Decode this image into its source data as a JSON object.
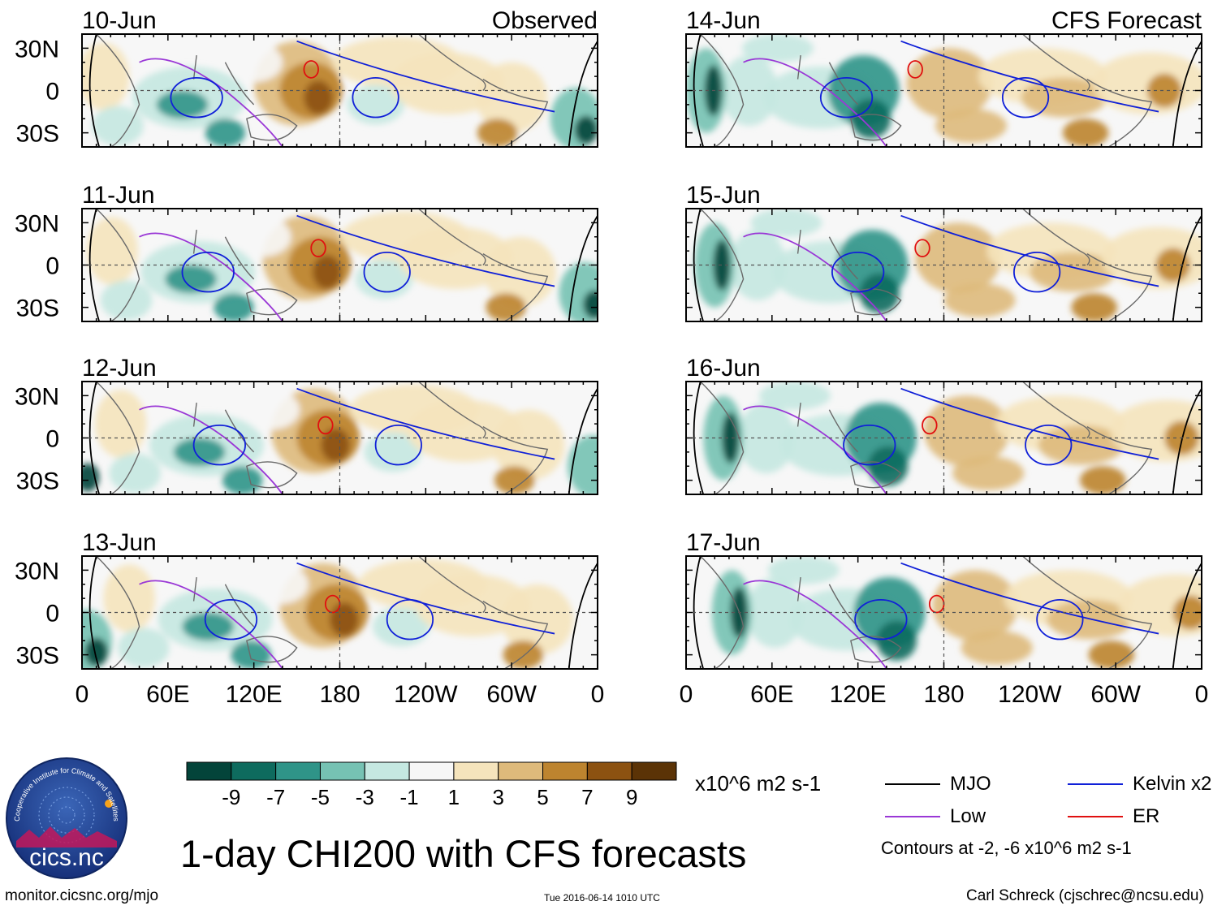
{
  "chart_data": {
    "type": "heatmap",
    "title": "1-day CHI200 with CFS forecasts",
    "variable": "CHI200",
    "units": "x10^6 m2 s-1",
    "xlabel": "",
    "ylabel": "",
    "x_tick_labels": [
      "0",
      "60E",
      "120E",
      "180",
      "120W",
      "60W",
      "0"
    ],
    "x_range_deg_east": [
      0,
      360
    ],
    "y_tick_labels": [
      "30N",
      "0",
      "30S"
    ],
    "y_range_deg": [
      -40,
      40
    ],
    "columns": [
      {
        "name": "Observed",
        "label": "Observed",
        "panels": [
          {
            "date": "10-Jun"
          },
          {
            "date": "11-Jun"
          },
          {
            "date": "12-Jun"
          },
          {
            "date": "13-Jun"
          }
        ]
      },
      {
        "name": "CFS Forecast",
        "label": "CFS Forecast",
        "panels": [
          {
            "date": "14-Jun"
          },
          {
            "date": "15-Jun"
          },
          {
            "date": "16-Jun"
          },
          {
            "date": "17-Jun"
          }
        ]
      }
    ],
    "colorbar": {
      "labels": [
        "-9",
        "-7",
        "-5",
        "-3",
        "-1",
        "1",
        "3",
        "5",
        "7",
        "9"
      ],
      "colors": [
        "#03443a",
        "#0e6b5e",
        "#2f9488",
        "#76c2b3",
        "#c5e8e1",
        "#f7f7f7",
        "#f5e4bc",
        "#deba7b",
        "#bd842f",
        "#8c5211",
        "#5b3306"
      ]
    },
    "contour_legend": [
      {
        "name": "MJO",
        "color": "#000000"
      },
      {
        "name": "Kelvin x2",
        "color": "#1020d8"
      },
      {
        "name": "Low",
        "color": "#9a38d6"
      },
      {
        "name": "ER",
        "color": "#e01010"
      }
    ],
    "contour_note": "Contours at -2, -6 x10^6 m2 s-1"
  },
  "footer": {
    "source_url": "monitor.cicsnc.org/mjo",
    "timestamp": "Tue 2016-06-14 1010 UTC",
    "credit": "Carl Schreck (cjschrec@ncsu.edu)"
  },
  "logo": {
    "org_text": "Cooperative Institute for Climate and Satellites",
    "short_text": "cics.nc"
  }
}
